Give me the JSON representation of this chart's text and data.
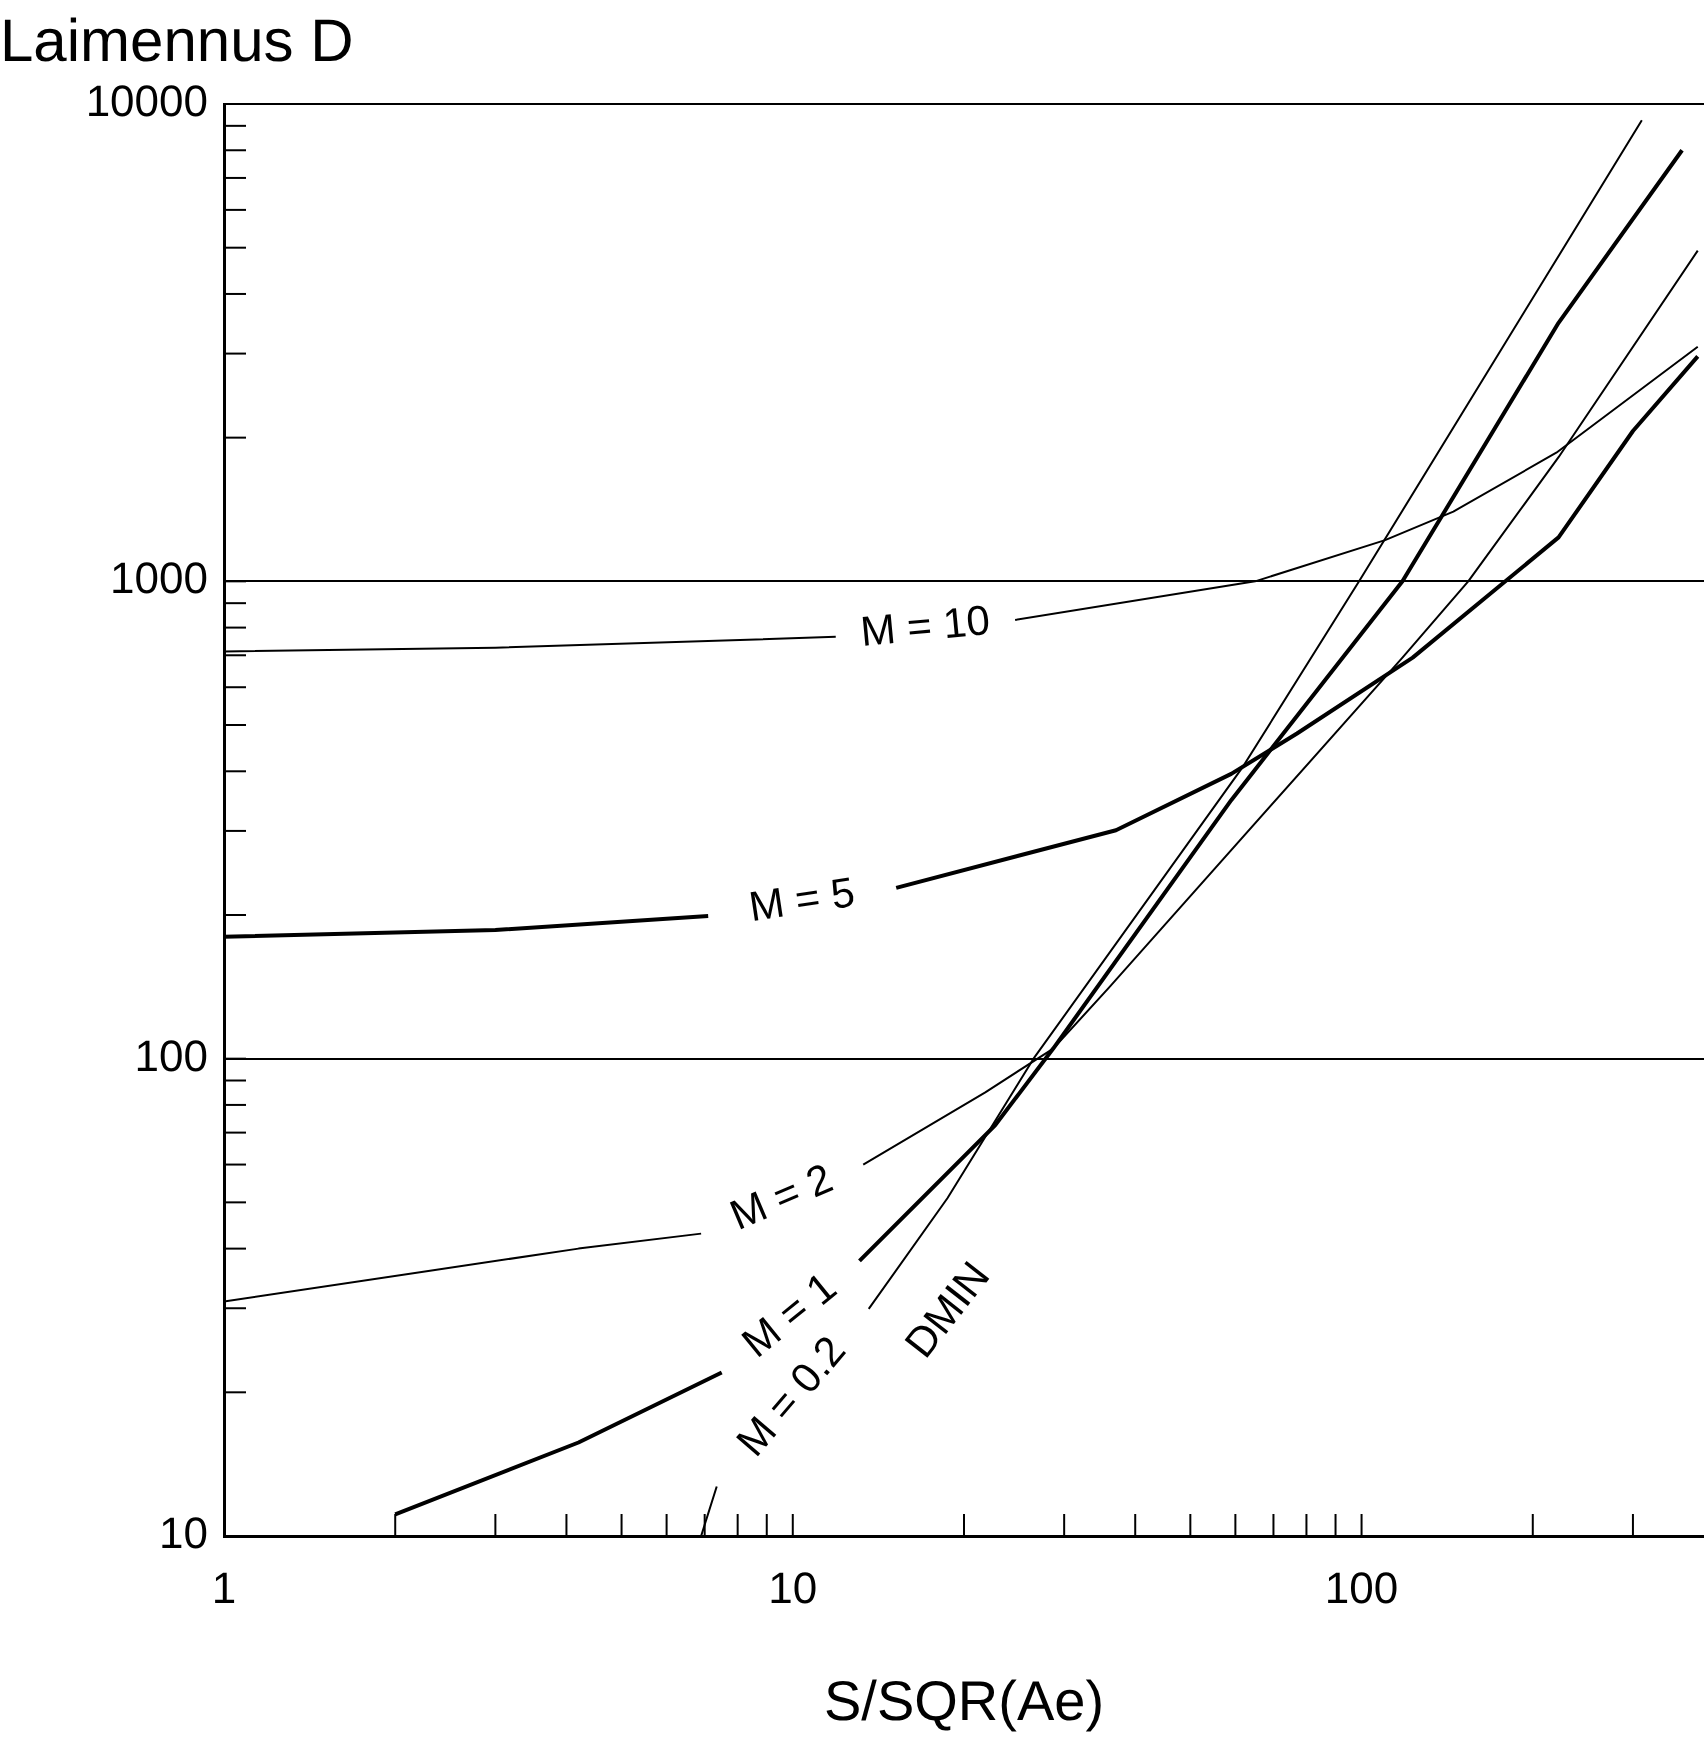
{
  "chart_data": {
    "type": "line",
    "title": "Laimennus D",
    "xlabel": "S/SQR(Ae)",
    "log": "xy",
    "grid": "y",
    "legend": false,
    "marker": "none",
    "line_style": "solid",
    "xlim": [
      1,
      400
    ],
    "ylim": [
      10,
      10000
    ],
    "xticks": [
      1,
      {
        "value": 2,
        "label": null
      },
      {
        "value": 3,
        "label": null
      },
      {
        "value": 4,
        "label": null
      },
      {
        "value": 5,
        "label": null
      },
      {
        "value": 6,
        "label": null
      },
      {
        "value": 7,
        "label": null
      },
      {
        "value": 8,
        "label": null
      },
      {
        "value": 9,
        "label": null
      },
      10,
      {
        "value": 20,
        "label": null
      },
      {
        "value": 30,
        "label": null
      },
      {
        "value": 40,
        "label": null
      },
      {
        "value": 50,
        "label": null
      },
      {
        "value": 60,
        "label": null
      },
      {
        "value": 70,
        "label": null
      },
      {
        "value": 80,
        "label": null
      },
      {
        "value": 90,
        "label": null
      },
      100,
      {
        "value": 200,
        "label": null
      },
      {
        "value": 300,
        "label": null
      }
    ],
    "yticks": [
      10,
      {
        "value": 20,
        "label": null
      },
      {
        "value": 30,
        "label": null
      },
      {
        "value": 40,
        "label": null
      },
      {
        "value": 50,
        "label": null
      },
      {
        "value": 60,
        "label": null
      },
      {
        "value": 70,
        "label": null
      },
      {
        "value": 80,
        "label": null
      },
      {
        "value": 90,
        "label": null
      },
      100,
      {
        "value": 200,
        "label": null
      },
      {
        "value": 300,
        "label": null
      },
      {
        "value": 400,
        "label": null
      },
      {
        "value": 500,
        "label": null
      },
      {
        "value": 600,
        "label": null
      },
      {
        "value": 700,
        "label": null
      },
      {
        "value": 800,
        "label": null
      },
      {
        "value": 900,
        "label": null
      },
      1000,
      {
        "value": 2000,
        "label": null
      },
      {
        "value": 3000,
        "label": null
      },
      {
        "value": 4000,
        "label": null
      },
      {
        "value": 5000,
        "label": null
      },
      {
        "value": 6000,
        "label": null
      },
      {
        "value": 7000,
        "label": null
      },
      {
        "value": 8000,
        "label": null
      },
      {
        "value": 9000,
        "label": null
      },
      10000
    ],
    "series": [
      {
        "name": "M = 10",
        "color": "#000000",
        "x": [
          1,
          3,
          11.9,
          18,
          24.6,
          65,
          110,
          145,
          220,
          390
        ],
        "values": [
          713,
          726,
          765,
          null,
          830,
          1000,
          1220,
          1400,
          1860,
          3100
        ]
      },
      {
        "name": "M = 5",
        "color": "#000000",
        "x": [
          1,
          3,
          7.1,
          10,
          15.2,
          37,
          59,
          77,
          123,
          222,
          300,
          390
        ],
        "values": [
          180,
          186,
          199,
          null,
          228,
          301,
          395,
          480,
          692,
          1236,
          2065,
          2960
        ]
      },
      {
        "name": "M = 2",
        "color": "#000000",
        "x": [
          1,
          4.2,
          6.9,
          9.5,
          13.3,
          21.8,
          28.7,
          36,
          118,
          154,
          222,
          390
        ],
        "values": [
          31,
          40,
          43,
          null,
          60,
          85,
          105,
          141,
          692,
          1000,
          1820,
          4930
        ]
      },
      {
        "name": "M = 1",
        "color": "#000000",
        "x": [
          2,
          4.2,
          7.5,
          10,
          13.1,
          22.7,
          28.7,
          59,
          118,
          222,
          366
        ],
        "values": [
          11.1,
          15.7,
          22,
          null,
          37.7,
          72.6,
          105,
          348,
          1000,
          3480,
          8000
        ]
      },
      {
        "name": "M = 0.2",
        "color": "#000000",
        "x": [
          6.9,
          7.35,
          10,
          13.6,
          18.7,
          26.5,
          61.7,
          99,
          211,
          311
        ],
        "values": [
          10,
          12.7,
          null,
          29.9,
          51,
          100,
          407,
          1000,
          4350,
          9250
        ]
      }
    ],
    "annotations": [
      "DMIN"
    ]
  }
}
